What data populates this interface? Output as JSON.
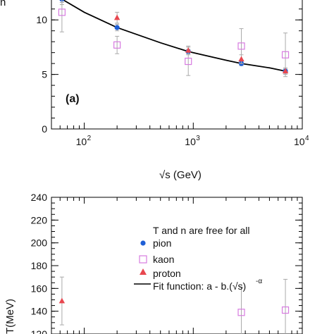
{
  "chart_data": [
    {
      "type": "scatter",
      "panel_label": "(a)",
      "xlabel": "√s (GeV)",
      "ylabel": "n",
      "xscale": "log",
      "xlim": [
        50,
        10000
      ],
      "ylim": [
        0,
        12.6
      ],
      "x_ticks": [
        {
          "value": 100,
          "base": "10",
          "exp": "2"
        },
        {
          "value": 1000,
          "base": "10",
          "exp": "3"
        },
        {
          "value": 10000,
          "base": "10",
          "exp": "4"
        }
      ],
      "y_ticks": [
        0,
        5,
        10
      ],
      "series": [
        {
          "key": "pion",
          "marker": "circle",
          "color": "#1f5fd6",
          "points": [
            {
              "x": 62.4,
              "y": 11.9,
              "err": 0.3
            },
            {
              "x": 200,
              "y": 9.3,
              "err": 0.3
            },
            {
              "x": 900,
              "y": 7.1,
              "err": 0.2
            },
            {
              "x": 2760,
              "y": 6.0,
              "err": 0.2
            },
            {
              "x": 7000,
              "y": 5.3,
              "err": 0.2
            }
          ]
        },
        {
          "key": "kaon",
          "marker": "open-square",
          "color": "#d77be0",
          "points": [
            {
              "x": 62.4,
              "y": 10.7,
              "err": 1.8
            },
            {
              "x": 200,
              "y": 7.7,
              "err": 0.8
            },
            {
              "x": 900,
              "y": 6.2,
              "err": 1.3
            },
            {
              "x": 2760,
              "y": 7.6,
              "err": 1.6
            },
            {
              "x": 7000,
              "y": 6.8,
              "err": 2.0
            }
          ]
        },
        {
          "key": "proton",
          "marker": "triangle",
          "color": "#e8474f",
          "points": [
            {
              "x": 62.4,
              "y": 12.3,
              "err": 0.9
            },
            {
              "x": 200,
              "y": 10.2,
              "err": 0.5
            },
            {
              "x": 900,
              "y": 7.2,
              "err": 0.4
            },
            {
              "x": 2760,
              "y": 6.4,
              "err": 0.4
            },
            {
              "x": 7000,
              "y": 5.3,
              "err": 0.3
            }
          ]
        }
      ],
      "fit": {
        "color": "#000000",
        "points": [
          {
            "x": 50,
            "y": 12.5
          },
          {
            "x": 62.4,
            "y": 11.9
          },
          {
            "x": 100,
            "y": 10.7
          },
          {
            "x": 200,
            "y": 9.3
          },
          {
            "x": 500,
            "y": 7.9
          },
          {
            "x": 900,
            "y": 7.1
          },
          {
            "x": 2000,
            "y": 6.3
          },
          {
            "x": 2760,
            "y": 6.0
          },
          {
            "x": 5000,
            "y": 5.6
          },
          {
            "x": 7000,
            "y": 5.3
          }
        ]
      }
    },
    {
      "type": "scatter",
      "ylabel": "T(MeV)",
      "xscale": "log",
      "xlim": [
        50,
        10000
      ],
      "ylim": [
        120,
        240
      ],
      "y_ticks": [
        120,
        140,
        160,
        180,
        200,
        220,
        240
      ],
      "legend_position": "top-right",
      "legend": {
        "header": "T and n are free for all",
        "pion": "pion",
        "kaon": "kaon",
        "proton": "proton",
        "fit": "Fit function: a - b.(√s)",
        "fit_exponent": "-α"
      },
      "series": [
        {
          "key": "pion",
          "marker": "circle",
          "color": "#1f5fd6",
          "points": []
        },
        {
          "key": "kaon",
          "marker": "open-square",
          "color": "#d77be0",
          "points": [
            {
              "x": 2760,
              "y": 139,
              "err": 22
            },
            {
              "x": 7000,
              "y": 141,
              "err": 27
            }
          ]
        },
        {
          "key": "proton",
          "marker": "triangle",
          "color": "#e8474f",
          "points": [
            {
              "x": 62.4,
              "y": 149,
              "err": 21
            }
          ]
        }
      ],
      "fit": {
        "color": "#000000",
        "points": []
      }
    }
  ]
}
